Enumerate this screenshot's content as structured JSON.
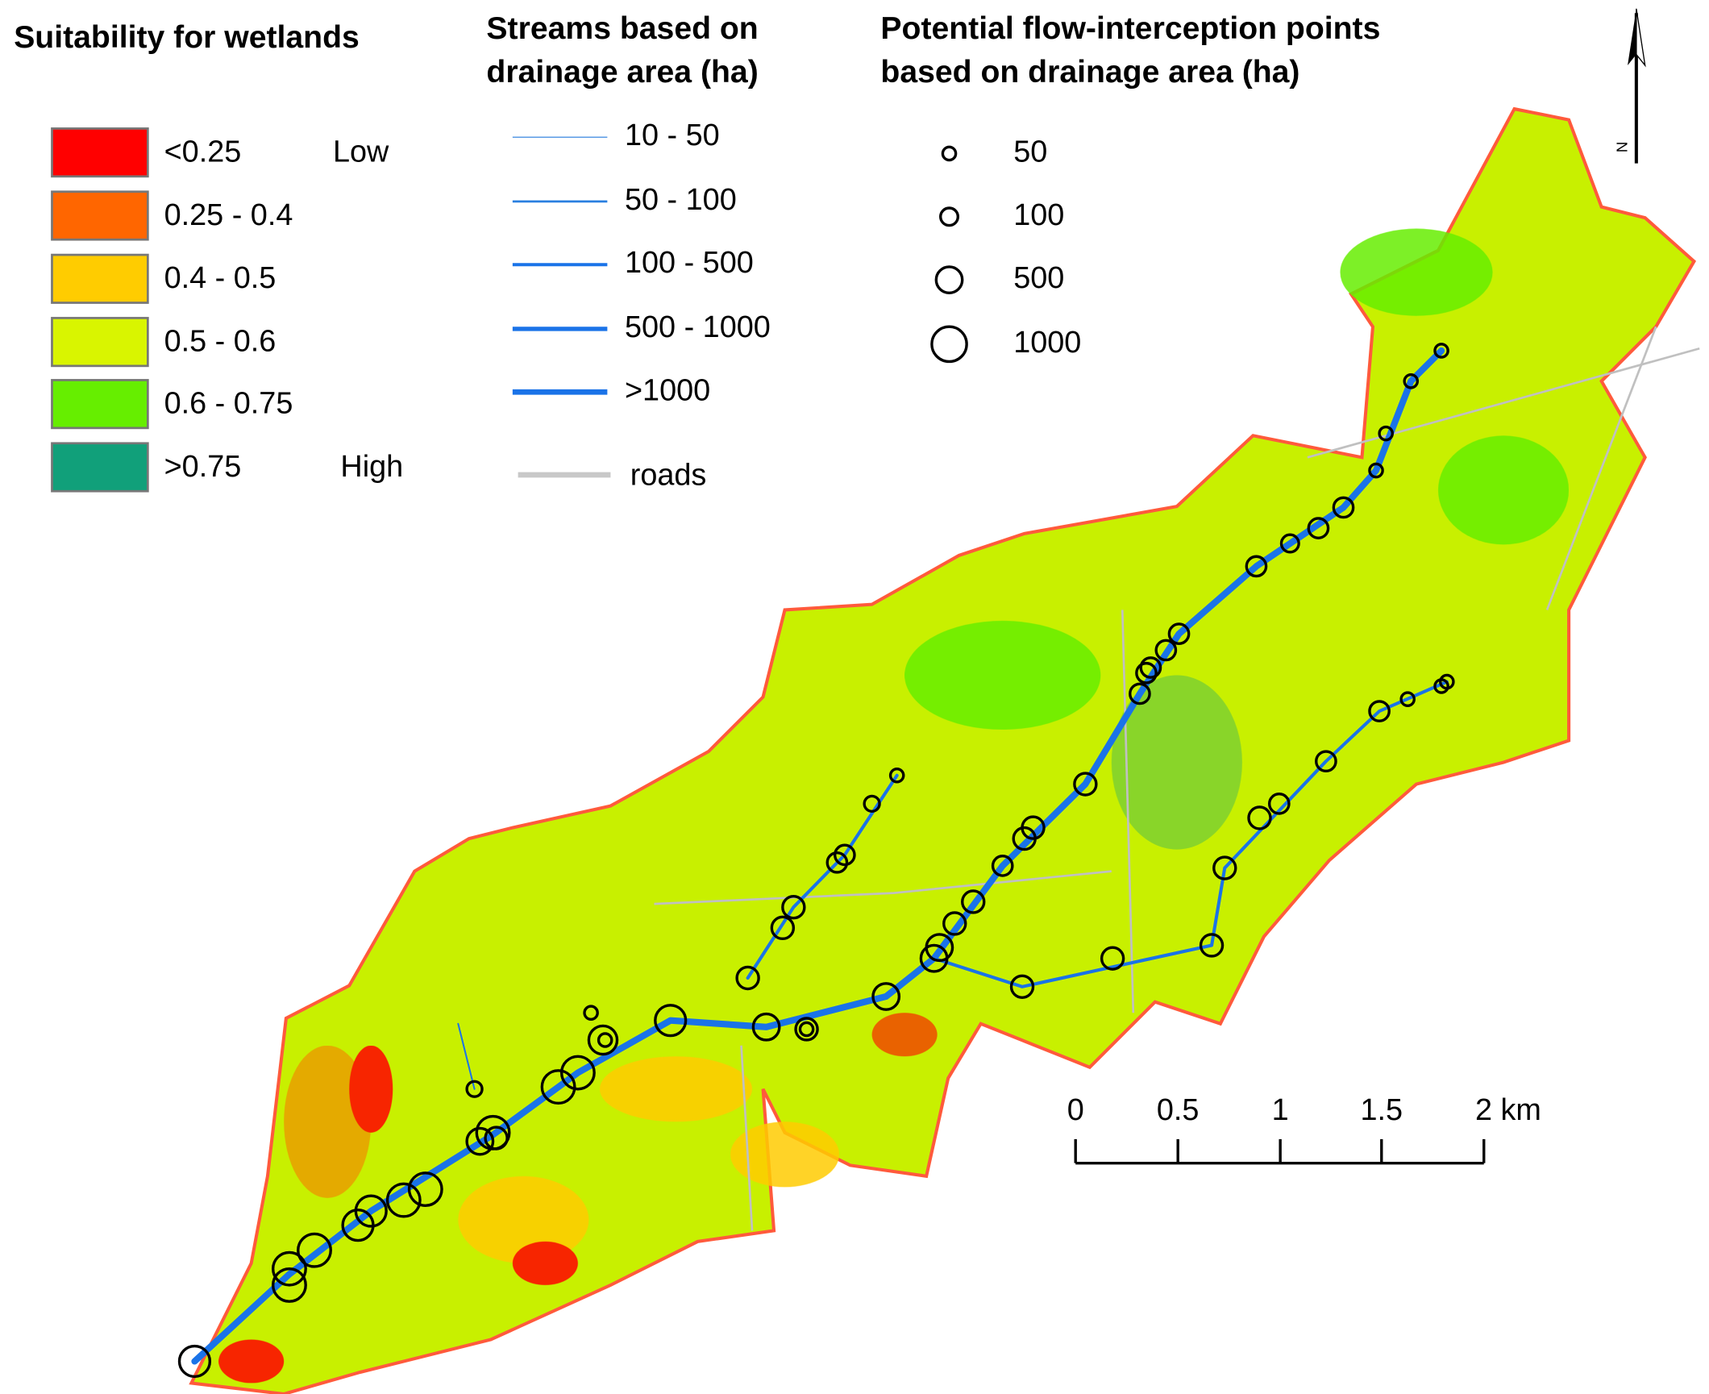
{
  "suitability_legend": {
    "title": "Suitability for wetlands",
    "items": [
      {
        "label": "<0.25",
        "note": "Low",
        "color": "#ff0000"
      },
      {
        "label": "0.25 - 0.4",
        "color": "#ff6600"
      },
      {
        "label": "0.4 - 0.5",
        "color": "#ffcc00"
      },
      {
        "label": "0.5 - 0.6",
        "color": "#d9f500"
      },
      {
        "label": "0.6 - 0.75",
        "color": "#66ee00"
      },
      {
        "label": ">0.75",
        "note": "High",
        "color": "#11a07a"
      }
    ]
  },
  "streams_legend": {
    "title_lines": [
      "Streams based on",
      "drainage area (ha)"
    ],
    "items": [
      {
        "label": "10 - 50",
        "color": "#4a90e2"
      },
      {
        "label": "50 - 100",
        "color": "#2a7fe0"
      },
      {
        "label": "100 - 500",
        "color": "#1a73e8"
      },
      {
        "label": "500 - 1000",
        "color": "#1a73e8"
      },
      {
        "label": ">1000",
        "color": "#1a73e8"
      }
    ],
    "roads": {
      "label": "roads",
      "color": "#c8c8c8"
    }
  },
  "points_legend": {
    "title_lines": [
      "Potential flow-interception points",
      "based on drainage area (ha)"
    ],
    "items": [
      {
        "label": "50"
      },
      {
        "label": "100"
      },
      {
        "label": "500"
      },
      {
        "label": "1000"
      }
    ]
  },
  "scale_bar": {
    "labels": [
      "0",
      "0.5",
      "1",
      "1.5",
      "2 km"
    ]
  },
  "north_arrow": {
    "label": "N"
  }
}
